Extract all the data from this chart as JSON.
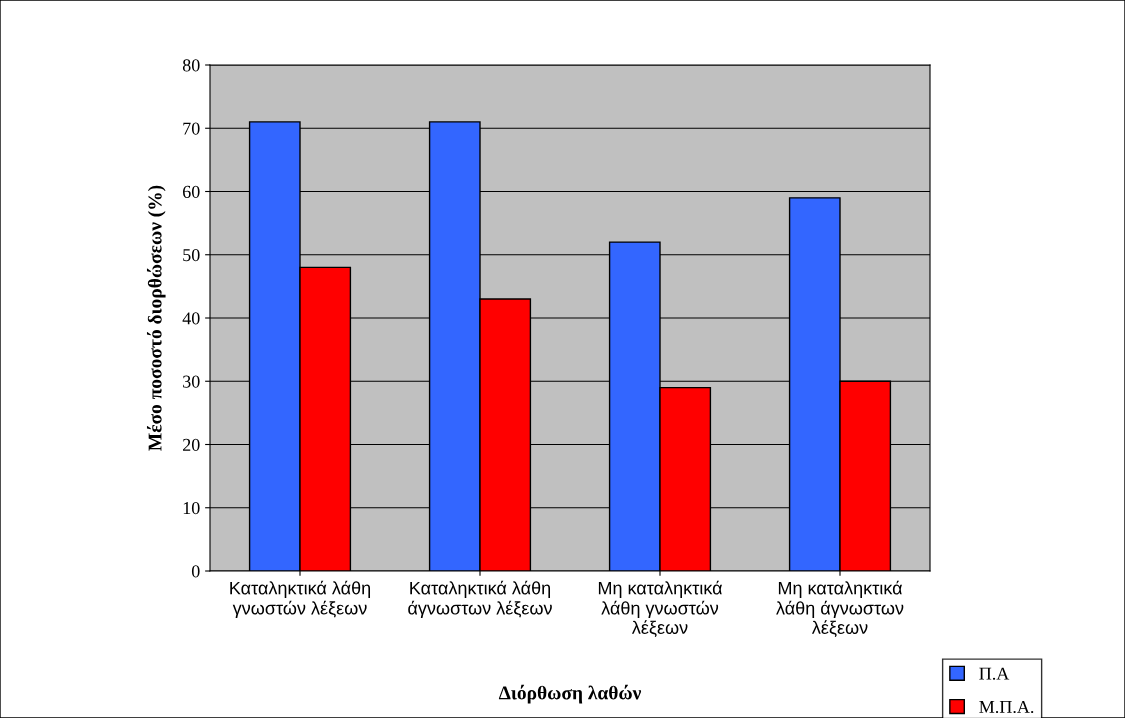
{
  "chart_data": {
    "type": "bar",
    "xlabel": "Διόρθωση λαθών",
    "ylabel": "Μέσο ποσοστό διορθώσεων (%)",
    "categories": [
      "Καταληκτικά λάθη\nγνωστών λέξεων",
      "Καταληκτικά λάθη\nάγνωστων λέξεων",
      "Μη καταληκτικά\nλάθη γνωστών\nλέξεων",
      "Μη καταληκτικά\nλάθη άγνωστων\nλέξεων"
    ],
    "series": [
      {
        "name": "Π.Α",
        "color": "#3366ff",
        "values": [
          71,
          71,
          52,
          59
        ]
      },
      {
        "name": "Μ.Π.Α.",
        "color": "#ff0000",
        "values": [
          48,
          43,
          29,
          30
        ]
      }
    ],
    "ylim": [
      0,
      80
    ],
    "yticks": [
      0,
      10,
      20,
      30,
      40,
      50,
      60,
      70,
      80
    ],
    "grid": "y",
    "legend": "bottom right"
  }
}
